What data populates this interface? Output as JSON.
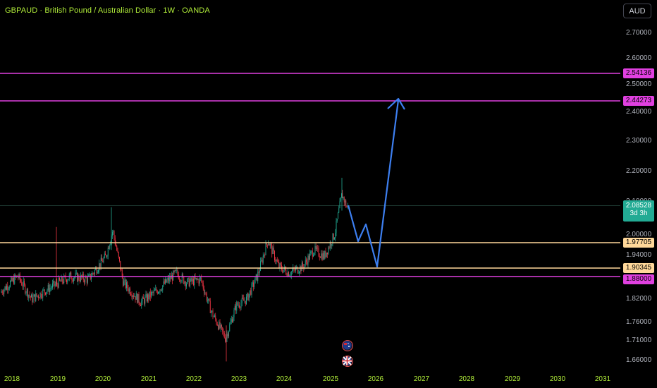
{
  "header": {
    "title": "GBPAUD · British Pound / Australian Dollar · 1W · OANDA",
    "currency_button": "AUD"
  },
  "colors": {
    "magenta": "#e040e0",
    "orange_level": "#ffd89a",
    "last_price": "#22ab94",
    "arrow": "#3d7ff0",
    "up_candle": "#22ab94",
    "down_candle": "#f23645",
    "axis_text": "#b3f03a"
  },
  "y_axis": {
    "ticks": [
      "2.70000",
      "2.60000",
      "2.50000",
      "2.40000",
      "2.30000",
      "2.20000",
      "2.10000",
      "2.00000",
      "1.94000",
      "1.82000",
      "1.76000",
      "1.71000",
      "1.66000"
    ]
  },
  "x_axis": {
    "ticks": [
      "2018",
      "2019",
      "2020",
      "2021",
      "2022",
      "2023",
      "2024",
      "2025",
      "2026",
      "2027",
      "2028",
      "2029",
      "2030",
      "2031"
    ]
  },
  "levels": [
    {
      "label": "2.54136",
      "type": "resistance",
      "color": "magenta"
    },
    {
      "label": "2.44273",
      "type": "target",
      "color": "magenta"
    },
    {
      "label": "1.97705",
      "type": "support",
      "color": "orange"
    },
    {
      "label": "1.90345",
      "type": "support",
      "color": "orange"
    },
    {
      "label": "1.88000",
      "type": "support",
      "color": "magenta"
    }
  ],
  "last_price": {
    "value": "2.08528",
    "countdown": "3d 3h"
  },
  "events": [
    {
      "icon": "australia-flag-icon"
    },
    {
      "icon": "uk-flag-icon"
    }
  ]
}
